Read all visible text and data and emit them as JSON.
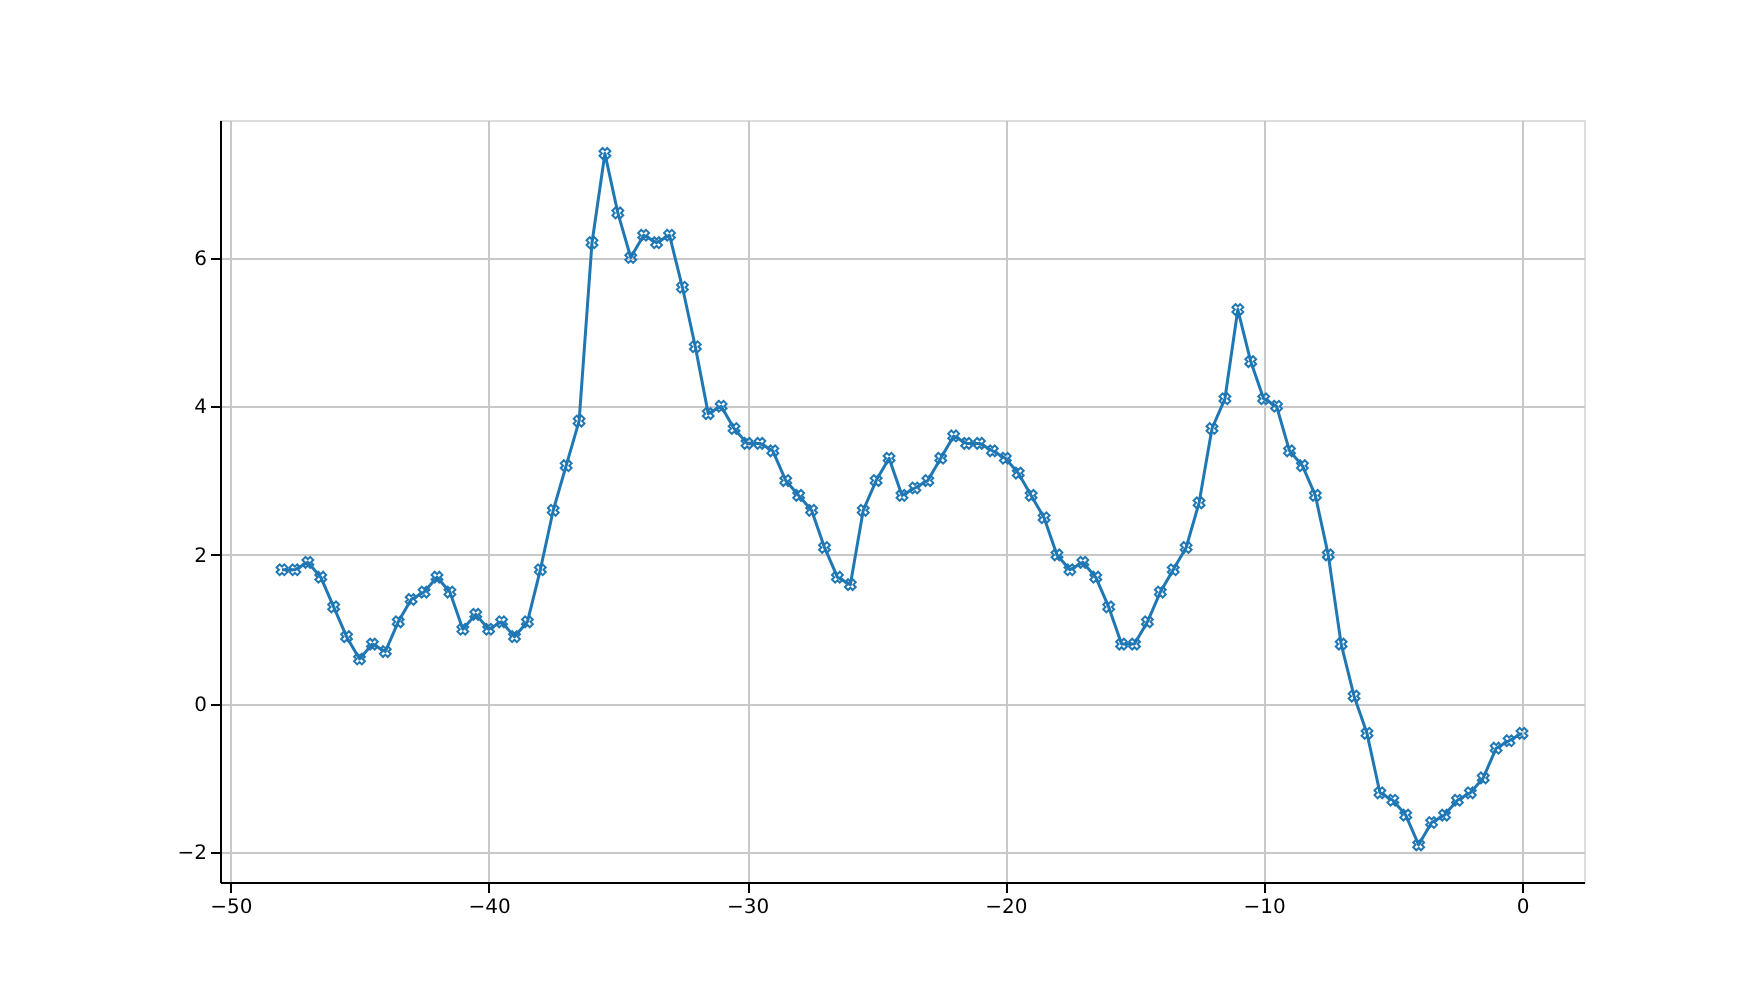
{
  "chart_data": {
    "type": "line",
    "marker": "cross",
    "line_style": "solid",
    "grid": true,
    "xlim": [
      -50.4,
      2.4
    ],
    "ylim": [
      -2.4,
      7.85
    ],
    "xticks": [
      -50,
      -40,
      -30,
      -20,
      -10,
      0
    ],
    "yticks": [
      -2,
      0,
      2,
      4,
      6
    ],
    "x": [
      -48,
      -47.5,
      -47,
      -46.5,
      -46,
      -45.5,
      -45,
      -44.5,
      -44,
      -43.5,
      -43,
      -42.5,
      -42,
      -41.5,
      -41,
      -40.5,
      -40,
      -39.5,
      -39,
      -38.5,
      -38,
      -37.5,
      -37,
      -36.5,
      -36,
      -35.5,
      -35,
      -34.5,
      -34,
      -33.5,
      -33,
      -32.5,
      -32,
      -31.5,
      -31,
      -30.5,
      -30,
      -29.5,
      -29,
      -28.5,
      -28,
      -27.5,
      -27,
      -26.5,
      -26,
      -25.5,
      -25,
      -24.5,
      -24,
      -23.5,
      -23,
      -22.5,
      -22,
      -21.5,
      -21,
      -20.5,
      -20,
      -19.5,
      -19,
      -18.5,
      -18,
      -17.5,
      -17,
      -16.5,
      -16,
      -15.5,
      -15,
      -14.5,
      -14,
      -13.5,
      -13,
      -12.5,
      -12,
      -11.5,
      -11,
      -10.5,
      -10,
      -9.5,
      -9,
      -8.5,
      -8,
      -7.5,
      -7,
      -6.5,
      -6,
      -5.5,
      -5,
      -4.5,
      -4,
      -3.5,
      -3,
      -2.5,
      -2,
      -1.5,
      -1,
      -0.5,
      0
    ],
    "series": [
      {
        "color": "#1f77b4",
        "values": [
          1.8,
          1.8,
          1.9,
          1.7,
          1.3,
          0.9,
          0.6,
          0.8,
          0.7,
          1.1,
          1.4,
          1.5,
          1.7,
          1.5,
          1.0,
          1.2,
          1.0,
          1.1,
          0.9,
          1.1,
          1.8,
          2.6,
          3.2,
          3.8,
          6.2,
          7.4,
          6.6,
          6.0,
          6.3,
          6.2,
          6.3,
          5.6,
          4.8,
          3.9,
          4.0,
          3.7,
          3.5,
          3.5,
          3.4,
          3.0,
          2.8,
          2.6,
          2.1,
          1.7,
          1.6,
          2.6,
          3.0,
          3.3,
          2.8,
          2.9,
          3.0,
          3.3,
          3.6,
          3.5,
          3.5,
          3.4,
          3.3,
          3.1,
          2.8,
          2.5,
          2.0,
          1.8,
          1.9,
          1.7,
          1.3,
          0.8,
          0.8,
          1.1,
          1.5,
          1.8,
          2.1,
          2.7,
          3.7,
          4.1,
          5.3,
          4.6,
          4.1,
          4.0,
          3.4,
          3.2,
          2.8,
          2.0,
          0.8,
          0.1,
          -0.4,
          -1.2,
          -1.3,
          -1.5,
          -1.9,
          -1.6,
          -1.5,
          -1.3,
          -1.2,
          -1.0,
          -0.6,
          -0.5,
          -0.4
        ]
      }
    ]
  }
}
